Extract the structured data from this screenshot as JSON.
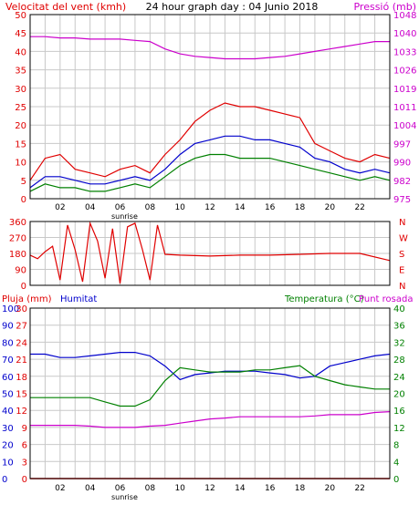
{
  "header": {
    "left_title": "Velocitat del vent (kmh)",
    "center_title": "24 hour graph day : 04 Junio 2018",
    "right_title": "Pressió (mb)"
  },
  "colors": {
    "red": "#e00000",
    "blue": "#0000cc",
    "green": "#008000",
    "magenta": "#cc00cc",
    "grid": "#c8c8c8",
    "frame": "#000000"
  },
  "chart_data": [
    {
      "type": "line",
      "panel": "wind-pressure",
      "x_ticks": [
        "02",
        "04",
        "06",
        "08",
        "10",
        "12",
        "14",
        "16",
        "18",
        "20",
        "22"
      ],
      "sunrise_label": "sunrise",
      "sunrise_hour": 6.3,
      "ylabel_left": "Velocitat del vent (kmh)",
      "ylabel_right": "Pressió (mb)",
      "ylim_left": [
        0,
        50
      ],
      "yticks_left": [
        0,
        5,
        10,
        15,
        20,
        25,
        30,
        35,
        40,
        45,
        50
      ],
      "ylim_right": [
        975,
        1050
      ],
      "yticks_right": [
        "975",
        "982",
        "990",
        "997",
        "1004",
        "1011",
        "1019",
        "1026",
        "1033",
        "1040",
        "1048"
      ],
      "x": [
        0,
        1,
        2,
        3,
        4,
        5,
        6,
        7,
        8,
        9,
        10,
        11,
        12,
        13,
        14,
        15,
        16,
        17,
        18,
        19,
        20,
        21,
        22,
        23,
        24
      ],
      "series": [
        {
          "role": "gust",
          "color": "#e00000",
          "values": [
            5,
            11,
            12,
            8,
            7,
            6,
            8,
            9,
            7,
            12,
            16,
            21,
            24,
            26,
            25,
            25,
            24,
            23,
            22,
            15,
            13,
            11,
            10,
            12,
            11
          ]
        },
        {
          "role": "average",
          "color": "#0000cc",
          "values": [
            3,
            6,
            6,
            5,
            4,
            4,
            5,
            6,
            5,
            8,
            12,
            15,
            16,
            17,
            17,
            16,
            16,
            15,
            14,
            11,
            10,
            8,
            7,
            8,
            7
          ]
        },
        {
          "role": "wind",
          "color": "#008000",
          "values": [
            2,
            4,
            3,
            3,
            2,
            2,
            3,
            4,
            3,
            6,
            9,
            11,
            12,
            12,
            11,
            11,
            11,
            10,
            9,
            8,
            7,
            6,
            5,
            6,
            5
          ]
        },
        {
          "role": "pressure",
          "axis": "right",
          "color": "#cc00cc",
          "values": [
            1041,
            1041,
            1040.5,
            1040.5,
            1040,
            1040,
            1040,
            1039.5,
            1039,
            1036,
            1034,
            1033,
            1032.5,
            1032,
            1032,
            1032,
            1032.5,
            1033,
            1034,
            1035,
            1036,
            1037,
            1038,
            1039,
            1039
          ]
        }
      ]
    },
    {
      "type": "line",
      "panel": "wind-direction",
      "ylim": [
        0,
        360
      ],
      "yticks_left": [
        "0",
        "90",
        "180",
        "270",
        "360"
      ],
      "yticks_right": [
        "N",
        "E",
        "S",
        "W",
        "N"
      ],
      "x": [
        0,
        0.5,
        1,
        1.5,
        2,
        2.5,
        3,
        3.5,
        4,
        4.5,
        5,
        5.5,
        6,
        6.5,
        7,
        7.5,
        8,
        8.5,
        9,
        10,
        12,
        14,
        16,
        18,
        20,
        22,
        24
      ],
      "series": [
        {
          "role": "direction",
          "color": "#e00000",
          "values": [
            170,
            150,
            190,
            220,
            30,
            340,
            200,
            20,
            350,
            250,
            40,
            320,
            10,
            330,
            350,
            200,
            30,
            340,
            175,
            170,
            165,
            170,
            170,
            175,
            180,
            180,
            140
          ]
        }
      ]
    },
    {
      "type": "line",
      "panel": "rain-humidity-temperature",
      "header_left": "Pluja (mm)",
      "header_hum": "Humitat",
      "header_right": "Temperatura (°C)",
      "header_dew": "Punt rosada",
      "sunrise_label": "sunrise",
      "sunrise_hour": 6.3,
      "x_ticks": [
        "02",
        "04",
        "06",
        "08",
        "10",
        "12",
        "14",
        "16",
        "18",
        "20",
        "22"
      ],
      "ylim_rain": [
        0,
        30
      ],
      "yticks_rain": [
        "0",
        "3",
        "6",
        "9",
        "12",
        "15",
        "18",
        "21",
        "24",
        "27",
        "30"
      ],
      "ylim_hum": [
        0,
        100
      ],
      "yticks_hum": [
        "0",
        "10",
        "20",
        "30",
        "40",
        "50",
        "60",
        "70",
        "80",
        "90",
        "100"
      ],
      "ylim_temp": [
        0,
        40
      ],
      "yticks_temp": [
        "0",
        "4",
        "8",
        "12",
        "16",
        "20",
        "24",
        "28",
        "32",
        "36",
        "40"
      ],
      "x": [
        0,
        1,
        2,
        3,
        4,
        5,
        6,
        7,
        8,
        9,
        10,
        11,
        12,
        13,
        14,
        15,
        16,
        17,
        18,
        19,
        20,
        21,
        22,
        23,
        24
      ],
      "series": [
        {
          "role": "humidity",
          "axis": "hum",
          "color": "#0000cc",
          "values": [
            73,
            73,
            71,
            71,
            72,
            73,
            74,
            74,
            72,
            66,
            58,
            61,
            62,
            63,
            63,
            63,
            62,
            61,
            59,
            60,
            66,
            68,
            70,
            72,
            73
          ]
        },
        {
          "role": "temperature",
          "axis": "temp",
          "color": "#008000",
          "values": [
            19,
            19,
            19,
            19,
            19,
            18,
            17,
            17,
            18.5,
            23,
            26,
            25.5,
            25,
            25,
            25,
            25.5,
            25.5,
            26,
            26.5,
            24,
            23,
            22,
            21.5,
            21,
            21
          ]
        },
        {
          "role": "dewpoint",
          "axis": "temp",
          "color": "#cc00cc",
          "values": [
            12.5,
            12.5,
            12.5,
            12.5,
            12.3,
            12,
            12,
            12,
            12.3,
            12.5,
            13,
            13.5,
            14,
            14.2,
            14.5,
            14.5,
            14.5,
            14.5,
            14.5,
            14.7,
            15,
            15,
            15,
            15.5,
            15.7
          ]
        },
        {
          "role": "rain",
          "axis": "rain",
          "color": "#e00000",
          "values": [
            0,
            0,
            0,
            0,
            0,
            0,
            0,
            0,
            0,
            0,
            0,
            0,
            0,
            0,
            0,
            0,
            0,
            0,
            0,
            0,
            0,
            0,
            0,
            0,
            0
          ]
        }
      ]
    }
  ]
}
